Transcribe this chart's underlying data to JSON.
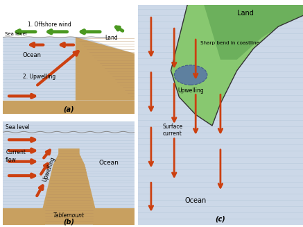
{
  "figsize": [
    4.37,
    3.27
  ],
  "dpi": 100,
  "panel_a": {
    "ocean_color": "#ccd8e8",
    "land_color": "#c8a060",
    "wind_color": "#4a9820",
    "arrow_color": "#cc4010",
    "label_a": "(a)",
    "text_offshore": "1. Offshore wind",
    "text_sealevel": "Sea level",
    "text_land": "Land",
    "text_ocean": "Ocean",
    "text_upwelling": "2. Upwelling"
  },
  "panel_b": {
    "ocean_color": "#ccd8e8",
    "land_color": "#c8a060",
    "arrow_color": "#cc4010",
    "label_b": "(b)",
    "text_sealevel": "Sea level",
    "text_current": "Current\nflow",
    "text_ocean": "Ocean",
    "text_upwelling": "Upwelling",
    "text_tablemount": "Tablemount"
  },
  "panel_c": {
    "ocean_color": "#ccd8e8",
    "land_color": "#88c870",
    "land_dark": "#5aa050",
    "arrow_color": "#cc4010",
    "upwelling_color": "#5068b0",
    "label_c": "(c)",
    "text_land": "Land",
    "text_sharp": "Sharp bend in coastline",
    "text_upwelling": "Upwelling",
    "text_surface": "Surface\ncurrent",
    "text_ocean": "Ocean"
  }
}
